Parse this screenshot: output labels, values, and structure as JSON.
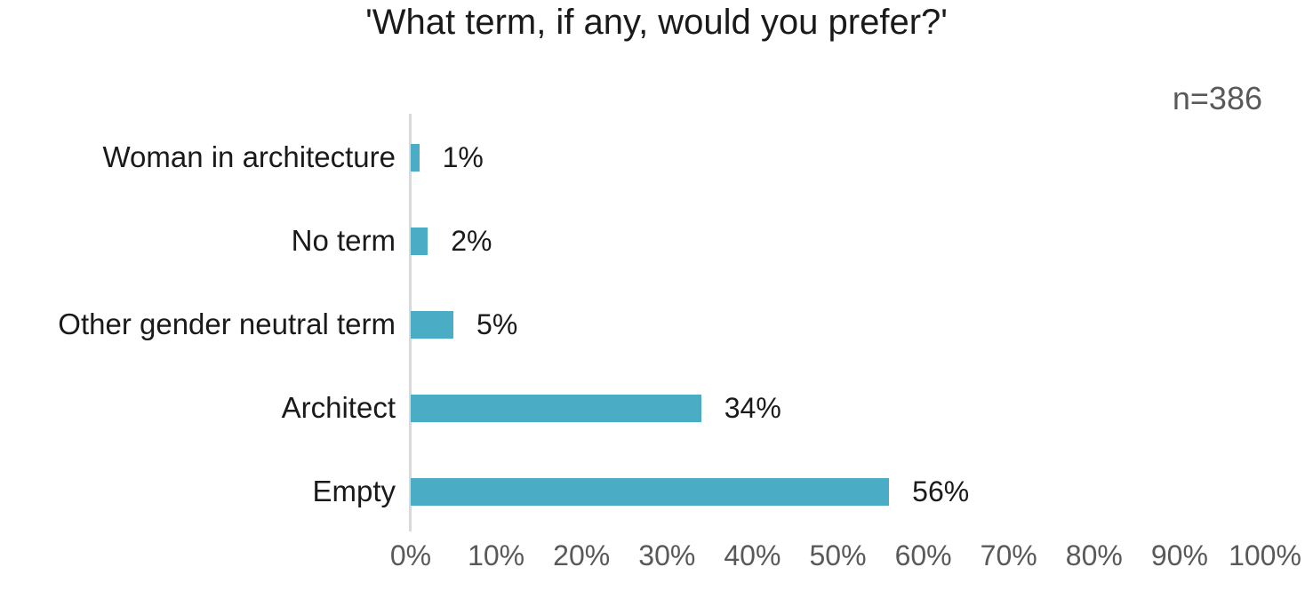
{
  "title": "'What term, if any, would you prefer?'",
  "annotation": "n=386",
  "colors": {
    "bar": "#4BACC6",
    "axis_line": "#d9d9d9",
    "tick_text": "#595959",
    "annotation_text": "#595959",
    "text": "#1a1a1a",
    "background": "#ffffff"
  },
  "chart_data": {
    "type": "bar",
    "orientation": "horizontal",
    "title": "'What term, if any, would you prefer?'",
    "sample_size_label": "n=386",
    "categories": [
      "Woman in architecture",
      "No term",
      "Other gender neutral term",
      "Architect",
      "Empty"
    ],
    "values": [
      1,
      2,
      5,
      34,
      56
    ],
    "value_labels": [
      "1%",
      "2%",
      "5%",
      "34%",
      "56%"
    ],
    "xlim": [
      0,
      100
    ],
    "x_tick_step": 10,
    "x_tick_labels": [
      "0%",
      "10%",
      "20%",
      "30%",
      "40%",
      "50%",
      "60%",
      "70%",
      "80%",
      "90%",
      "100%"
    ],
    "grid": false,
    "legend": false,
    "data_labels": "outside-end"
  }
}
